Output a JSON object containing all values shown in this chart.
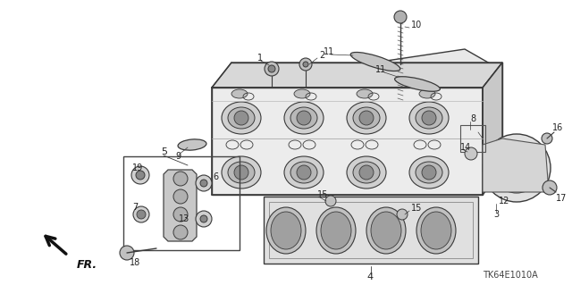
{
  "bg_color": "#ffffff",
  "line_color": "#3a3a3a",
  "diagram_code": "TK64E1010A",
  "figsize": [
    6.4,
    3.19
  ],
  "dpi": 100
}
